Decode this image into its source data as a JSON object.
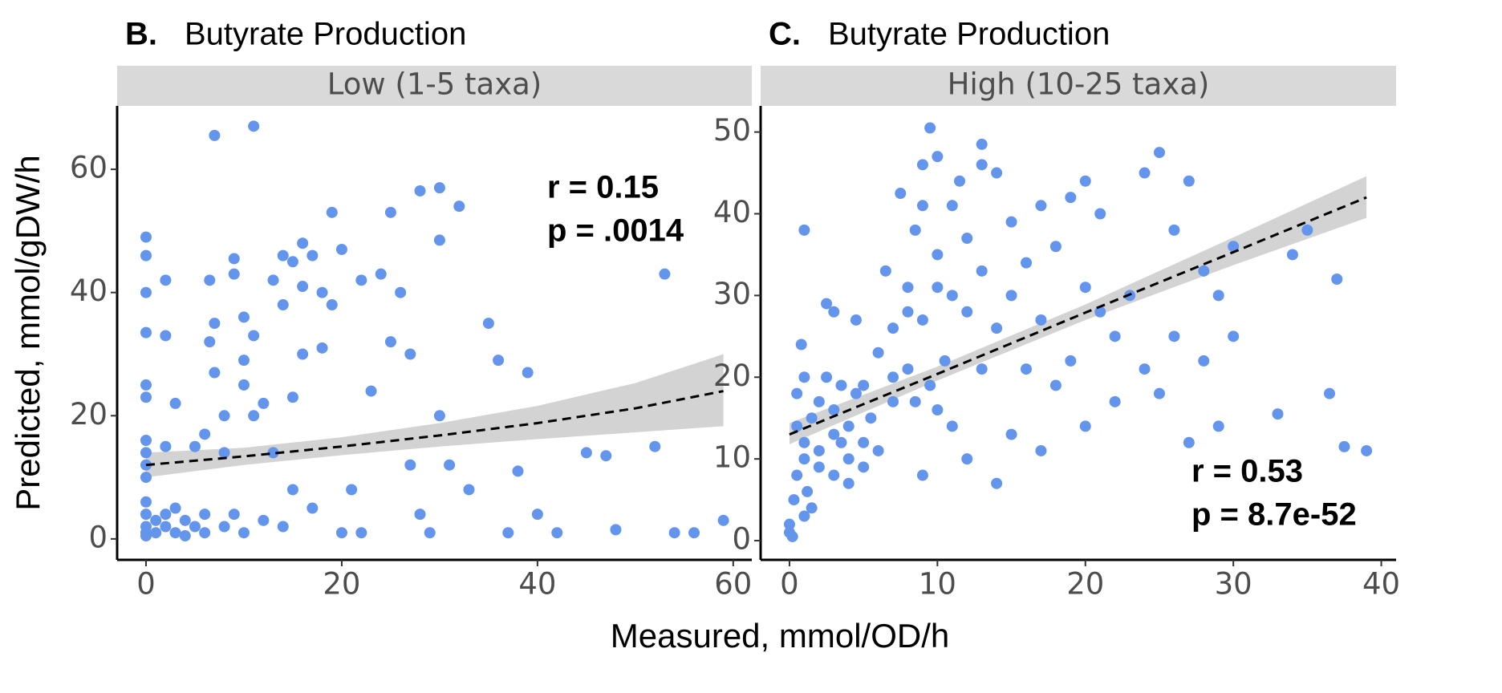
{
  "axis_labels": {
    "x": "Measured, mmol/OD/h",
    "y": "Predicted, mmol/gDW/h"
  },
  "chart_data": [
    {
      "type": "scatter",
      "panel": "B.",
      "title": "Butyrate Production",
      "facet": "Low (1-5 taxa)",
      "color": "#6495ed",
      "x": [
        0,
        0,
        0,
        0,
        0,
        0,
        0,
        0,
        0,
        0,
        0,
        0,
        0,
        0,
        0,
        1,
        1,
        2,
        2,
        2,
        2,
        2,
        3,
        3,
        3,
        4,
        4,
        5,
        5,
        6,
        6,
        6,
        6.5,
        6.5,
        7,
        7,
        7,
        8,
        8,
        8,
        9,
        9,
        9,
        10,
        10,
        10,
        10,
        11,
        11,
        11,
        12,
        12,
        13,
        13,
        14,
        14,
        14,
        15,
        15,
        15,
        16,
        16,
        16,
        17,
        17,
        18,
        18,
        19,
        19,
        20,
        20,
        21,
        22,
        22,
        23,
        24,
        25,
        25,
        26,
        27,
        27,
        28,
        28,
        29,
        30,
        30,
        30,
        31,
        32,
        33,
        35,
        36,
        37,
        38,
        39,
        40,
        42,
        45,
        47,
        48,
        52,
        53,
        54,
        56,
        59
      ],
      "y": [
        49,
        46,
        40,
        33.5,
        25,
        23,
        16,
        14,
        12,
        10,
        6,
        4,
        2,
        1,
        0.5,
        3,
        1,
        4,
        2,
        15,
        33,
        42,
        5,
        1,
        22,
        3,
        0.5,
        2,
        15,
        4,
        1,
        17,
        42,
        32,
        65.5,
        35,
        27,
        2,
        14,
        20,
        4,
        45.5,
        43,
        36,
        29,
        25,
        1,
        67,
        33,
        20,
        22,
        3,
        42,
        14,
        46,
        38,
        2,
        45,
        23,
        8,
        48,
        41,
        30,
        46,
        5,
        40,
        31,
        53,
        38,
        47,
        1,
        8,
        42,
        1,
        24,
        43,
        53,
        32,
        40,
        30,
        12,
        4,
        56.5,
        1,
        57,
        48.5,
        20,
        12,
        54,
        8,
        35,
        29,
        1,
        11,
        27,
        4,
        1,
        14,
        13.5,
        1.5,
        15,
        43,
        1,
        1,
        3
      ],
      "fit": {
        "x": [
          0,
          10,
          20,
          30,
          40,
          50,
          59
        ],
        "y": [
          12,
          13.4,
          15,
          16.8,
          18.8,
          21.2,
          24
        ],
        "lower": [
          10,
          12,
          13.6,
          15,
          16.2,
          17.3,
          18.3
        ],
        "upper": [
          14,
          14.8,
          16.5,
          18.8,
          21.6,
          25.3,
          30
        ]
      },
      "annotations": [
        "r = 0.15",
        "p = .0014"
      ],
      "annotation_corner": "top-right",
      "xlim": [
        -2.95,
        61.9
      ],
      "ylim": [
        -3.4,
        70.3
      ],
      "xticks": [
        0,
        20,
        40,
        60
      ],
      "yticks": [
        0,
        20,
        40,
        60
      ]
    },
    {
      "type": "scatter",
      "panel": "C.",
      "title": "Butyrate Production",
      "facet": "High (10-25 taxa)",
      "color": "#6495ed",
      "x": [
        0,
        0,
        0.2,
        0.3,
        0.5,
        0.5,
        0.5,
        0.8,
        1,
        1,
        1,
        1,
        1,
        1.2,
        1.5,
        1.5,
        2,
        2,
        2,
        2.5,
        2.5,
        3,
        3,
        3,
        3,
        3.5,
        3.5,
        4,
        4,
        4,
        4.5,
        4.5,
        5,
        5,
        5,
        5.5,
        6,
        6,
        6.5,
        7,
        7,
        7,
        7.5,
        8,
        8,
        8,
        8.5,
        8.5,
        9,
        9,
        9,
        9,
        9.5,
        9.5,
        10,
        10,
        10,
        10,
        10.5,
        11,
        11,
        11,
        11.5,
        12,
        12,
        12,
        13,
        13,
        13,
        13,
        14,
        14,
        14,
        15,
        15,
        15,
        16,
        16,
        17,
        17,
        17,
        18,
        18,
        19,
        19,
        20,
        20,
        20,
        21,
        21,
        22,
        22,
        23,
        24,
        24,
        25,
        25,
        26,
        26,
        27,
        27,
        28,
        28,
        29,
        29,
        30,
        30,
        33,
        34,
        35,
        36.5,
        37,
        37.5,
        39
      ],
      "y": [
        1,
        2,
        0.5,
        5,
        8,
        14,
        18,
        24,
        12,
        3,
        10,
        20,
        38,
        6,
        15,
        4,
        9,
        17,
        11,
        20,
        29,
        13,
        8,
        16,
        28,
        12,
        19,
        10,
        14,
        7,
        27,
        18,
        12,
        9,
        19,
        15,
        23,
        11,
        33,
        20,
        17,
        26,
        42.5,
        28,
        31,
        21,
        38,
        17,
        41,
        46,
        8,
        27,
        50.5,
        19,
        35,
        47,
        31,
        16,
        22,
        30,
        41,
        14,
        44,
        37,
        28,
        10,
        46,
        48.5,
        33,
        21,
        45,
        26,
        7,
        39,
        30,
        13,
        34,
        21,
        41,
        27,
        11,
        36,
        19,
        42,
        22,
        44,
        31,
        14,
        40,
        28,
        17,
        25,
        30,
        45,
        21,
        47.5,
        18,
        38,
        25,
        44,
        12,
        33,
        22,
        30,
        14,
        36,
        25,
        15.5,
        35,
        38,
        18,
        32,
        11.5,
        11
      ],
      "fit": {
        "x": [
          0,
          10,
          20,
          30,
          39
        ],
        "y": [
          13,
          20.4,
          27.9,
          35.3,
          42
        ],
        "lower": [
          11.8,
          19.6,
          27,
          33.7,
          39.5
        ],
        "upper": [
          14.4,
          21.3,
          28.9,
          37.1,
          44.6
        ]
      },
      "annotations": [
        "r = 0.53",
        "p = 8.7e-52"
      ],
      "annotation_corner": "bottom-right",
      "xlim": [
        -1.95,
        41
      ],
      "ylim": [
        -2.35,
        53.2
      ],
      "xticks": [
        0,
        10,
        20,
        30,
        40
      ],
      "yticks": [
        0,
        10,
        20,
        30,
        40,
        50
      ]
    }
  ]
}
